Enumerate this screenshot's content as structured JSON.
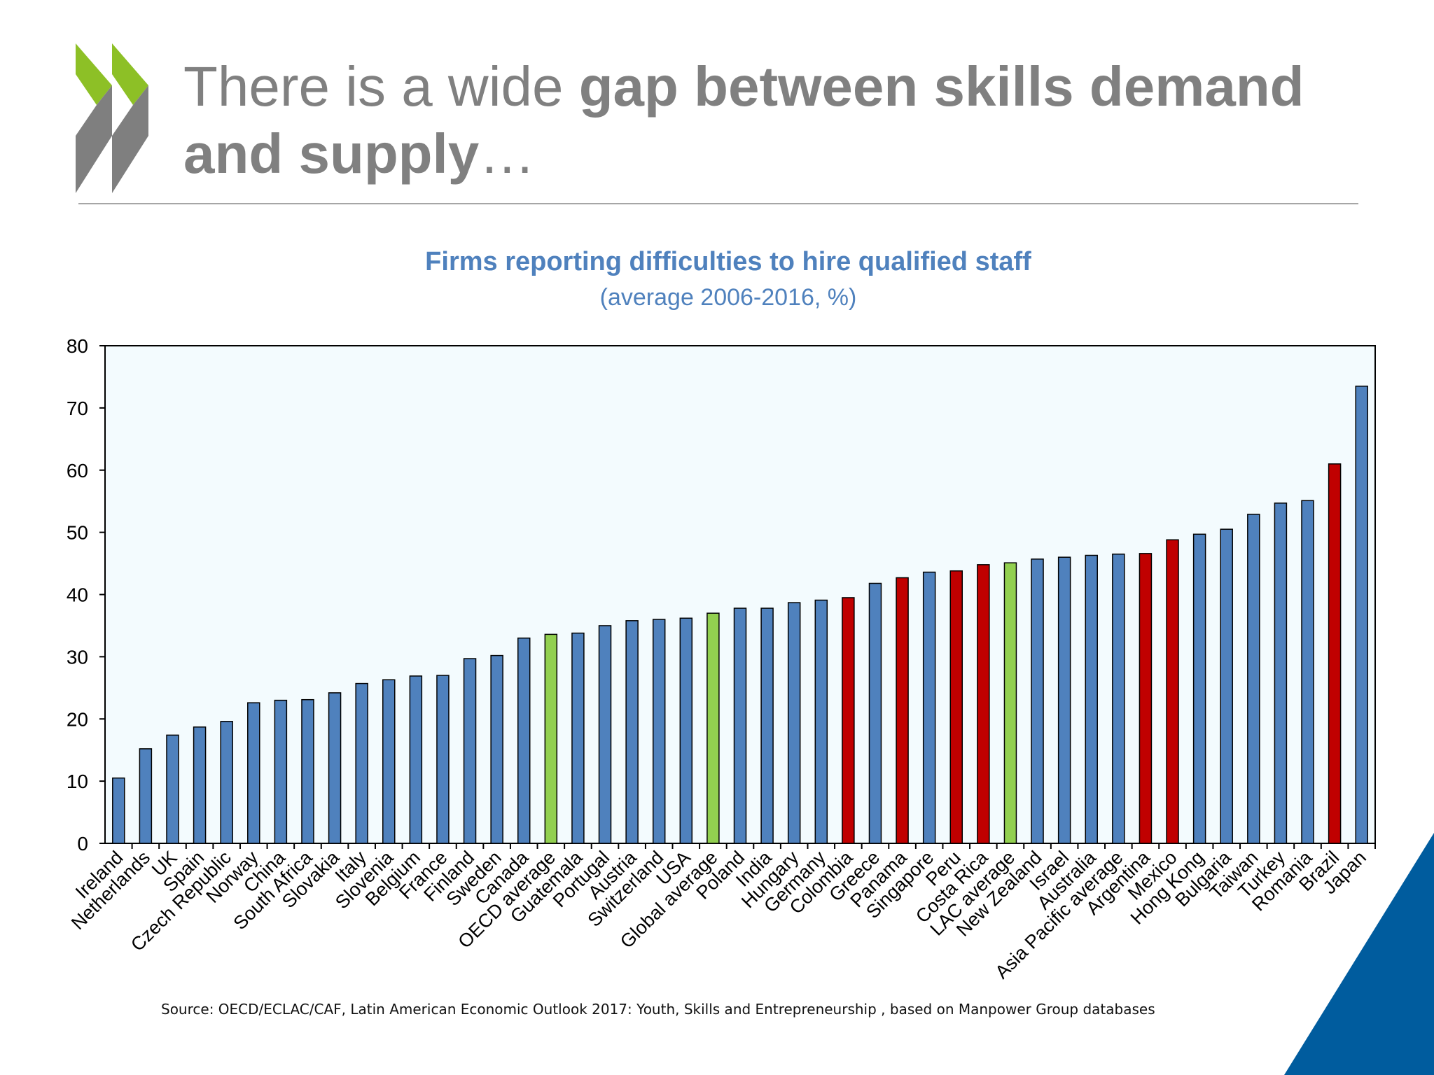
{
  "slide": {
    "title_light": "There is a wide ",
    "title_bold_1": "gap between skills demand and supply",
    "title_tail": "…",
    "source": "Source: OECD/ECLAC/CAF, Latin American Economic Outlook 2017: Youth, Skills and Entrepreneurship , based on Manpower Group databases",
    "colors": {
      "logo_green": "#8dc026",
      "logo_gray": "#7f7f7f",
      "corner_blue": "#005c9e"
    }
  },
  "chart_data": {
    "type": "bar",
    "title": "Firms reporting difficulties to hire qualified staff",
    "subtitle": "(average 2006-2016, %)",
    "xlabel": "",
    "ylabel": "",
    "ylim": [
      0,
      80
    ],
    "yticks": [
      0,
      10,
      20,
      30,
      40,
      50,
      60,
      70,
      80
    ],
    "grid": false,
    "legend": "none",
    "colors": {
      "default": "#4f81bd",
      "latin_america": "#c00000",
      "average": "#92d050",
      "plot_background": "#f3fbfe"
    },
    "categories": [
      "Ireland",
      "Netherlands",
      "UK",
      "Spain",
      "Czech Republic",
      "Norway",
      "China",
      "South Africa",
      "Slovakia",
      "Italy",
      "Slovenia",
      "Belgium",
      "France",
      "Finland",
      "Sweden",
      "Canada",
      "OECD average",
      "Guatemala",
      "Portugal",
      "Austria",
      "Switzerland",
      "USA",
      "Global average",
      "Poland",
      "India",
      "Hungary",
      "Germany",
      "Colombia",
      "Greece",
      "Panama",
      "Singapore",
      "Peru",
      "Costa Rica",
      "LAC average",
      "New Zealand",
      "Israel",
      "Australia",
      "Asia Pacific average",
      "Argentina",
      "Mexico",
      "Hong Kong",
      "Bulgaria",
      "Taiwan",
      "Turkey",
      "Romania",
      "Brazil",
      "Japan"
    ],
    "values": [
      10.5,
      15.2,
      17.4,
      18.7,
      19.6,
      22.6,
      23.0,
      23.1,
      24.2,
      25.7,
      26.3,
      26.9,
      27.0,
      29.7,
      30.2,
      33.0,
      33.6,
      33.8,
      35.0,
      35.8,
      36.0,
      36.2,
      37.0,
      37.8,
      37.8,
      38.7,
      39.1,
      39.5,
      41.8,
      42.7,
      43.6,
      43.8,
      44.8,
      45.1,
      45.7,
      46.0,
      46.3,
      46.5,
      46.6,
      48.8,
      49.7,
      50.5,
      52.9,
      54.7,
      55.1,
      61.0,
      73.5
    ],
    "bar_groups": [
      "default",
      "default",
      "default",
      "default",
      "default",
      "default",
      "default",
      "default",
      "default",
      "default",
      "default",
      "default",
      "default",
      "default",
      "default",
      "default",
      "average",
      "default",
      "default",
      "default",
      "default",
      "default",
      "average",
      "default",
      "default",
      "default",
      "default",
      "latin_america",
      "default",
      "latin_america",
      "default",
      "latin_america",
      "latin_america",
      "average",
      "default",
      "default",
      "default",
      "default",
      "latin_america",
      "latin_america",
      "default",
      "default",
      "default",
      "default",
      "default",
      "latin_america",
      "default"
    ]
  }
}
